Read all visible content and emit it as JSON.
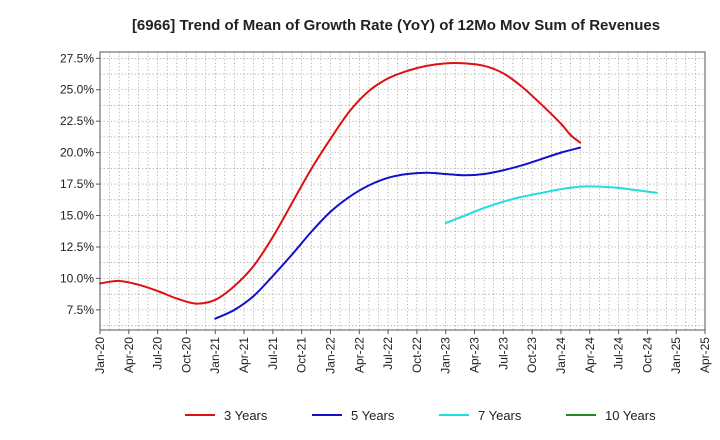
{
  "chart_data": {
    "type": "line",
    "title": "[6966]  Trend of Mean of Growth Rate (YoY) of 12Mo Mov Sum of Revenues",
    "xlabel": "",
    "ylabel": "",
    "x_ticks": [
      "Jan-20",
      "Apr-20",
      "Jul-20",
      "Oct-20",
      "Jan-21",
      "Apr-21",
      "Jul-21",
      "Oct-21",
      "Jan-22",
      "Apr-22",
      "Jul-22",
      "Oct-22",
      "Jan-23",
      "Apr-23",
      "Jul-23",
      "Oct-23",
      "Jan-24",
      "Apr-24",
      "Jul-24",
      "Oct-24",
      "Jan-25",
      "Apr-25"
    ],
    "y_ticks": [
      "7.5%",
      "10.0%",
      "12.5%",
      "15.0%",
      "17.5%",
      "20.0%",
      "22.5%",
      "25.0%",
      "27.5%"
    ],
    "y_tick_values": [
      7.5,
      10.0,
      12.5,
      15.0,
      17.5,
      20.0,
      22.5,
      25.0,
      27.5
    ],
    "ylim": [
      5.9,
      28.0
    ],
    "x_range_months": [
      0,
      63
    ],
    "grid": true,
    "legend_position": "bottom",
    "series": [
      {
        "name": "3 Years",
        "color": "#dd1111",
        "points": [
          [
            0,
            9.6
          ],
          [
            2,
            9.8
          ],
          [
            4,
            9.5
          ],
          [
            6,
            9.0
          ],
          [
            8,
            8.4
          ],
          [
            10,
            8.0
          ],
          [
            12,
            8.3
          ],
          [
            14,
            9.4
          ],
          [
            16,
            11.0
          ],
          [
            18,
            13.3
          ],
          [
            20,
            16.0
          ],
          [
            22,
            18.7
          ],
          [
            24,
            21.1
          ],
          [
            26,
            23.3
          ],
          [
            28,
            24.9
          ],
          [
            30,
            25.9
          ],
          [
            32,
            26.5
          ],
          [
            34,
            26.9
          ],
          [
            36,
            27.1
          ],
          [
            38,
            27.1
          ],
          [
            40,
            26.9
          ],
          [
            42,
            26.3
          ],
          [
            44,
            25.2
          ],
          [
            46,
            23.8
          ],
          [
            48,
            22.3
          ],
          [
            49,
            21.4
          ],
          [
            50,
            20.8
          ]
        ]
      },
      {
        "name": "5 Years",
        "color": "#1111cc",
        "points": [
          [
            12,
            6.8
          ],
          [
            14,
            7.5
          ],
          [
            16,
            8.6
          ],
          [
            18,
            10.2
          ],
          [
            20,
            11.9
          ],
          [
            22,
            13.7
          ],
          [
            24,
            15.3
          ],
          [
            26,
            16.5
          ],
          [
            28,
            17.4
          ],
          [
            30,
            18.0
          ],
          [
            32,
            18.3
          ],
          [
            34,
            18.4
          ],
          [
            36,
            18.3
          ],
          [
            38,
            18.2
          ],
          [
            40,
            18.3
          ],
          [
            42,
            18.6
          ],
          [
            44,
            19.0
          ],
          [
            46,
            19.5
          ],
          [
            48,
            20.0
          ],
          [
            50,
            20.4
          ]
        ]
      },
      {
        "name": "7 Years",
        "color": "#22dddd",
        "points": [
          [
            36,
            14.4
          ],
          [
            38,
            15.0
          ],
          [
            40,
            15.6
          ],
          [
            42,
            16.1
          ],
          [
            44,
            16.5
          ],
          [
            46,
            16.8
          ],
          [
            48,
            17.1
          ],
          [
            50,
            17.3
          ],
          [
            52,
            17.3
          ],
          [
            54,
            17.2
          ],
          [
            56,
            17.0
          ],
          [
            58,
            16.8
          ]
        ]
      },
      {
        "name": "10 Years",
        "color": "#228822",
        "points": []
      }
    ]
  }
}
